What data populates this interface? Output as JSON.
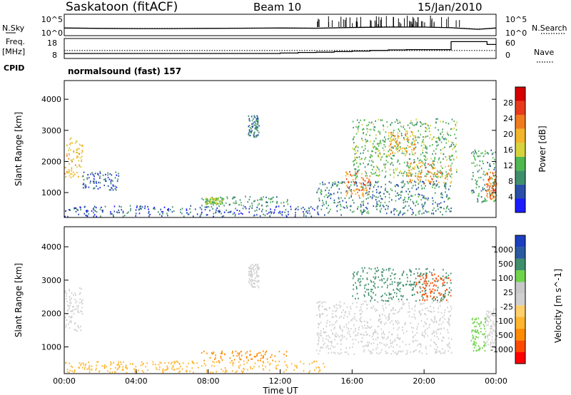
{
  "header": {
    "title": "Saskatoon (fitACF)",
    "beam": "Beam 10",
    "date": "15/Jan/2010"
  },
  "left_labels": {
    "nsky": "N.Sky",
    "freq_line1": "Freq.",
    "freq_line2": "[MHz]",
    "cpid": "CPID"
  },
  "right_labels": {
    "nsearch": "N.Search",
    "nave": "Nave"
  },
  "cpid_text": "normalsound (fast) 157",
  "colors": {
    "power_scale": [
      "#1c1cff",
      "#2a4fa8",
      "#3f8f6d",
      "#4fb84f",
      "#d7d33a",
      "#f3b52a",
      "#f07a1f",
      "#e83a1a",
      "#d60000"
    ],
    "velocity_scale": [
      "#ff0000",
      "#ff4a00",
      "#ff8c00",
      "#ffb52e",
      "#ffd06b",
      "#d0d0d0",
      "#c8c8c8",
      "#6fd44a",
      "#3f8f6d",
      "#2a5aa0",
      "#1c3fbf"
    ]
  },
  "chart_data": [
    {
      "type": "line",
      "name": "noise-panel",
      "ylabels_left": [
        "10^5",
        "10^0"
      ],
      "ylabels_right": [
        "10^5",
        "10^0"
      ],
      "x": [
        "00:00",
        "02:00",
        "04:00",
        "06:00",
        "08:00",
        "10:00",
        "12:00",
        "14:00",
        "16:00",
        "18:00",
        "20:00",
        "21:30",
        "23:00",
        "24:00"
      ],
      "series": [
        {
          "name": "N.Sky",
          "values": [
            60,
            50,
            45,
            45,
            50,
            55,
            60,
            55,
            80,
            100,
            100,
            70,
            30,
            60
          ]
        },
        {
          "name": "N.Search",
          "values": [
            65,
            55,
            50,
            50,
            55,
            60,
            65,
            60,
            90,
            120,
            110,
            75,
            35,
            65
          ]
        }
      ]
    },
    {
      "type": "line",
      "name": "freq-nave-panel",
      "yticks_left": [
        "18",
        "8"
      ],
      "yticks_right": [
        "60",
        "0"
      ],
      "x": [
        "00:00",
        "01:00",
        "02:00",
        "04:00",
        "06:00",
        "08:00",
        "10:00",
        "12:00",
        "13:00",
        "14:00",
        "15:00",
        "16:00",
        "17:00",
        "18:00",
        "19:00",
        "20:00",
        "21:30",
        "22:30",
        "23:30",
        "24:00"
      ],
      "series": [
        {
          "name": "Freq",
          "values": [
            9.5,
            9.5,
            9.5,
            9.5,
            9.5,
            9.5,
            9.5,
            9.8,
            10.2,
            10.4,
            10.8,
            11.2,
            11.6,
            12.0,
            12.2,
            12.2,
            17.8,
            17.8,
            15.8,
            15.8
          ]
        },
        {
          "name": "Nave",
          "values": [
            28,
            28,
            28,
            28,
            28,
            28,
            28,
            28,
            28,
            28,
            28,
            28,
            28,
            28,
            28,
            28,
            28,
            28,
            28,
            28
          ]
        }
      ]
    },
    {
      "type": "heatmap",
      "name": "power",
      "ylabel": "Slant Range [km]",
      "yticks": [
        1000,
        2000,
        3000,
        4000
      ],
      "ylim": [
        200,
        4600
      ],
      "xlim": [
        0,
        24
      ],
      "colorbar_label": "Power [dB]",
      "colorbar_ticks": [
        28,
        24,
        20,
        16,
        12,
        8,
        4
      ],
      "clim": [
        0,
        32
      ],
      "blobs": [
        {
          "t0": 0.0,
          "t1": 1.0,
          "r0": 1500,
          "r1": 2800,
          "value": 18
        },
        {
          "t0": 1.0,
          "t1": 3.0,
          "r0": 1100,
          "r1": 1700,
          "value": 6
        },
        {
          "t0": 0.0,
          "t1": 14.5,
          "r0": 250,
          "r1": 600,
          "value": 6
        },
        {
          "t0": 7.6,
          "t1": 12.4,
          "r0": 600,
          "r1": 900,
          "value": 10
        },
        {
          "t0": 7.8,
          "t1": 8.8,
          "r0": 650,
          "r1": 850,
          "value": 14
        },
        {
          "t0": 10.2,
          "t1": 10.8,
          "r0": 2800,
          "r1": 3500,
          "value": 8
        },
        {
          "t0": 14.0,
          "t1": 21.5,
          "r0": 300,
          "r1": 1400,
          "value": 8
        },
        {
          "t0": 15.5,
          "t1": 17.0,
          "r0": 900,
          "r1": 1700,
          "value": 22
        },
        {
          "t0": 16.0,
          "t1": 21.8,
          "r0": 1500,
          "r1": 3400,
          "value": 12
        },
        {
          "t0": 18.0,
          "t1": 19.5,
          "r0": 2200,
          "r1": 3000,
          "value": 20
        },
        {
          "t0": 19.0,
          "t1": 21.5,
          "r0": 1300,
          "r1": 2000,
          "value": 22
        },
        {
          "t0": 22.6,
          "t1": 24.0,
          "r0": 700,
          "r1": 2400,
          "value": 10
        },
        {
          "t0": 23.4,
          "t1": 24.0,
          "r0": 800,
          "r1": 1700,
          "value": 24
        }
      ]
    },
    {
      "type": "heatmap",
      "name": "velocity",
      "ylabel": "Slant Range [km]",
      "yticks": [
        1000,
        2000,
        3000,
        4000
      ],
      "ylim": [
        200,
        4600
      ],
      "xlim": [
        0,
        24
      ],
      "xticks": [
        "00:00",
        "04:00",
        "08:00",
        "12:00",
        "16:00",
        "20:00",
        "00:00"
      ],
      "xlabel": "Time UT",
      "colorbar_label": "Velocity [m s^-1]",
      "colorbar_ticks": [
        "1000",
        "500",
        "100",
        "25",
        "-25",
        "-100",
        "-500",
        "-1000"
      ],
      "blobs": [
        {
          "t0": 0.0,
          "t1": 1.0,
          "r0": 1500,
          "r1": 2800,
          "value": 0
        },
        {
          "t0": 0.0,
          "t1": 14.5,
          "r0": 250,
          "r1": 600,
          "value": -80
        },
        {
          "t0": 7.6,
          "t1": 12.4,
          "r0": 600,
          "r1": 900,
          "value": -150
        },
        {
          "t0": 10.2,
          "t1": 10.8,
          "r0": 2800,
          "r1": 3500,
          "value": 0
        },
        {
          "t0": 14.0,
          "t1": 21.5,
          "r0": 800,
          "r1": 2400,
          "value": 0
        },
        {
          "t0": 16.0,
          "t1": 21.5,
          "r0": 2400,
          "r1": 3400,
          "value": 200
        },
        {
          "t0": 19.5,
          "t1": 21.5,
          "r0": 2400,
          "r1": 3200,
          "value": -300
        },
        {
          "t0": 22.6,
          "t1": 23.4,
          "r0": 900,
          "r1": 1900,
          "value": 80
        },
        {
          "t0": 23.4,
          "t1": 24.0,
          "r0": 1000,
          "r1": 2200,
          "value": 0
        }
      ]
    }
  ]
}
